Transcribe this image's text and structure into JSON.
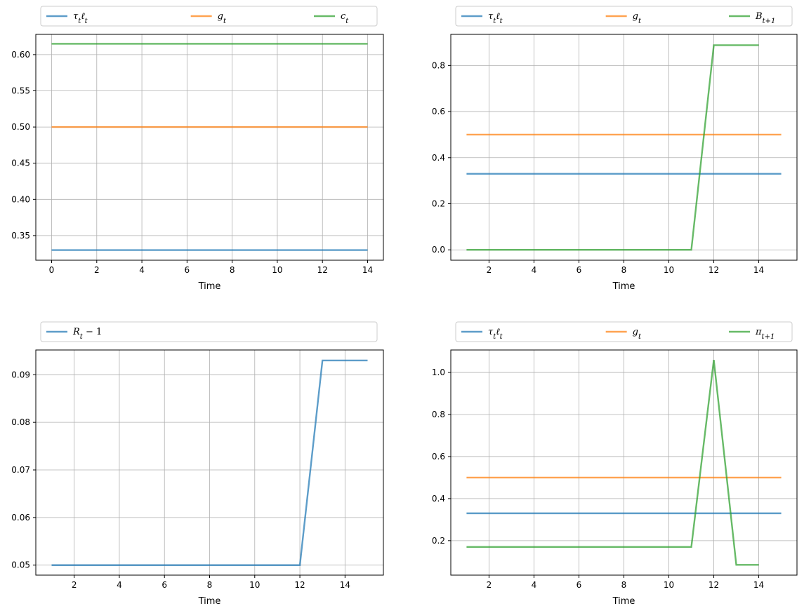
{
  "chart_data": [
    {
      "type": "line",
      "xlabel": "Time",
      "xlim": [
        -0.7,
        14.7
      ],
      "ylim": [
        0.316,
        0.628
      ],
      "xticks": [
        0,
        2,
        4,
        6,
        8,
        10,
        12,
        14
      ],
      "yticks": [
        0.35,
        0.4,
        0.45,
        0.5,
        0.55,
        0.6
      ],
      "ytick_labels": [
        "0.35",
        "0.40",
        "0.45",
        "0.50",
        "0.55",
        "0.60"
      ],
      "grid": true,
      "legend_placement": "above",
      "series": [
        {
          "name": "τtℓt",
          "color": "#1f77b4",
          "x": [
            0,
            1,
            2,
            3,
            4,
            5,
            6,
            7,
            8,
            9,
            10,
            11,
            12,
            13,
            14
          ],
          "y": [
            0.33,
            0.33,
            0.33,
            0.33,
            0.33,
            0.33,
            0.33,
            0.33,
            0.33,
            0.33,
            0.33,
            0.33,
            0.33,
            0.33,
            0.33
          ]
        },
        {
          "name": "gt",
          "color": "#ff7f0e",
          "x": [
            0,
            1,
            2,
            3,
            4,
            5,
            6,
            7,
            8,
            9,
            10,
            11,
            12,
            13,
            14
          ],
          "y": [
            0.5,
            0.5,
            0.5,
            0.5,
            0.5,
            0.5,
            0.5,
            0.5,
            0.5,
            0.5,
            0.5,
            0.5,
            0.5,
            0.5,
            0.5
          ]
        },
        {
          "name": "ct",
          "color": "#2ca02c",
          "x": [
            0,
            1,
            2,
            3,
            4,
            5,
            6,
            7,
            8,
            9,
            10,
            11,
            12,
            13,
            14
          ],
          "y": [
            0.615,
            0.615,
            0.615,
            0.615,
            0.615,
            0.615,
            0.615,
            0.615,
            0.615,
            0.615,
            0.615,
            0.615,
            0.615,
            0.615,
            0.615
          ]
        }
      ]
    },
    {
      "type": "line",
      "xlabel": "Time",
      "xlim": [
        0.3,
        15.7
      ],
      "ylim": [
        -0.045,
        0.935
      ],
      "xticks": [
        2,
        4,
        6,
        8,
        10,
        12,
        14
      ],
      "yticks": [
        0.0,
        0.2,
        0.4,
        0.6,
        0.8
      ],
      "ytick_labels": [
        "0.0",
        "0.2",
        "0.4",
        "0.6",
        "0.8"
      ],
      "grid": true,
      "legend_placement": "above",
      "series": [
        {
          "name": "τtℓt",
          "color": "#1f77b4",
          "x": [
            1,
            2,
            3,
            4,
            5,
            6,
            7,
            8,
            9,
            10,
            11,
            12,
            13,
            14,
            15
          ],
          "y": [
            0.33,
            0.33,
            0.33,
            0.33,
            0.33,
            0.33,
            0.33,
            0.33,
            0.33,
            0.33,
            0.33,
            0.33,
            0.33,
            0.33,
            0.33
          ]
        },
        {
          "name": "gt",
          "color": "#ff7f0e",
          "x": [
            1,
            2,
            3,
            4,
            5,
            6,
            7,
            8,
            9,
            10,
            11,
            12,
            13,
            14,
            15
          ],
          "y": [
            0.5,
            0.5,
            0.5,
            0.5,
            0.5,
            0.5,
            0.5,
            0.5,
            0.5,
            0.5,
            0.5,
            0.5,
            0.5,
            0.5,
            0.5
          ]
        },
        {
          "name": "Bt+1",
          "color": "#2ca02c",
          "x": [
            1,
            2,
            3,
            4,
            5,
            6,
            7,
            8,
            9,
            10,
            11,
            12,
            13,
            14
          ],
          "y": [
            0,
            0,
            0,
            0,
            0,
            0,
            0,
            0,
            0,
            0,
            0,
            0.888,
            0.888,
            0.888
          ]
        }
      ]
    },
    {
      "type": "line",
      "xlabel": "Time",
      "xlim": [
        0.3,
        15.7
      ],
      "ylim": [
        0.0479,
        0.0952
      ],
      "xticks": [
        2,
        4,
        6,
        8,
        10,
        12,
        14
      ],
      "yticks": [
        0.05,
        0.06,
        0.07,
        0.08,
        0.09
      ],
      "ytick_labels": [
        "0.05",
        "0.06",
        "0.07",
        "0.08",
        "0.09"
      ],
      "grid": true,
      "legend_placement": "above",
      "series": [
        {
          "name": "Rt − 1",
          "color": "#1f77b4",
          "x": [
            1,
            2,
            3,
            4,
            5,
            6,
            7,
            8,
            9,
            10,
            11,
            12,
            13,
            14,
            15
          ],
          "y": [
            0.05,
            0.05,
            0.05,
            0.05,
            0.05,
            0.05,
            0.05,
            0.05,
            0.05,
            0.05,
            0.05,
            0.05,
            0.093,
            0.093,
            0.093
          ]
        }
      ]
    },
    {
      "type": "line",
      "xlabel": "Time",
      "xlim": [
        0.3,
        15.7
      ],
      "ylim": [
        0.036,
        1.107
      ],
      "xticks": [
        2,
        4,
        6,
        8,
        10,
        12,
        14
      ],
      "yticks": [
        0.2,
        0.4,
        0.6,
        0.8,
        1.0
      ],
      "ytick_labels": [
        "0.2",
        "0.4",
        "0.6",
        "0.8",
        "1.0"
      ],
      "grid": true,
      "legend_placement": "above",
      "series": [
        {
          "name": "τtℓt",
          "color": "#1f77b4",
          "x": [
            1,
            2,
            3,
            4,
            5,
            6,
            7,
            8,
            9,
            10,
            11,
            12,
            13,
            14,
            15
          ],
          "y": [
            0.33,
            0.33,
            0.33,
            0.33,
            0.33,
            0.33,
            0.33,
            0.33,
            0.33,
            0.33,
            0.33,
            0.33,
            0.33,
            0.33,
            0.33
          ]
        },
        {
          "name": "gt",
          "color": "#ff7f0e",
          "x": [
            1,
            2,
            3,
            4,
            5,
            6,
            7,
            8,
            9,
            10,
            11,
            12,
            13,
            14,
            15
          ],
          "y": [
            0.5,
            0.5,
            0.5,
            0.5,
            0.5,
            0.5,
            0.5,
            0.5,
            0.5,
            0.5,
            0.5,
            0.5,
            0.5,
            0.5,
            0.5
          ]
        },
        {
          "name": "πt+1",
          "color": "#2ca02c",
          "x": [
            1,
            2,
            3,
            4,
            5,
            6,
            7,
            8,
            9,
            10,
            11,
            12,
            13,
            14
          ],
          "y": [
            0.17,
            0.17,
            0.17,
            0.17,
            0.17,
            0.17,
            0.17,
            0.17,
            0.17,
            0.17,
            0.17,
            1.06,
            0.085,
            0.085
          ]
        }
      ]
    }
  ]
}
